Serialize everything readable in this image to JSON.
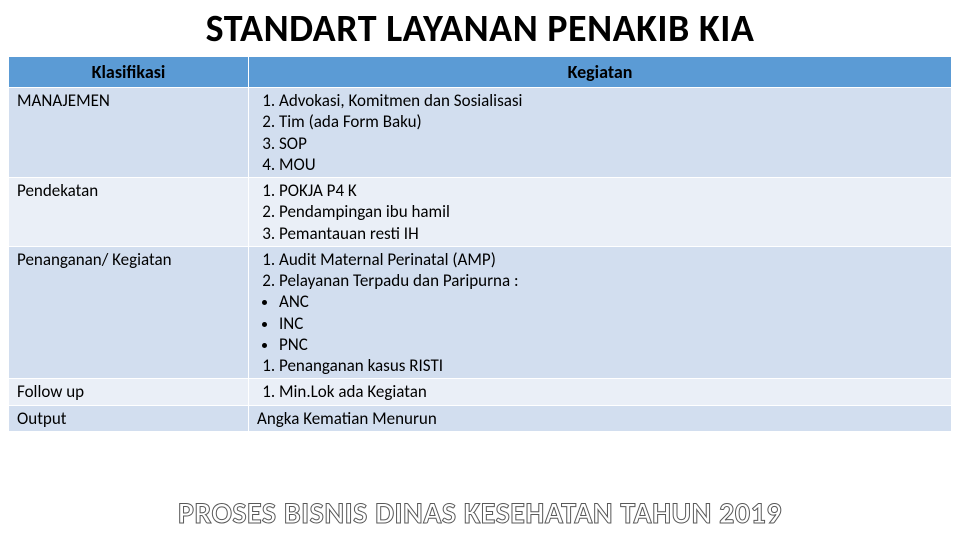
{
  "title": "STANDART LAYANAN PENAKIB KIA",
  "columns": {
    "col1": "Klasifikasi",
    "col2": "Kegiatan"
  },
  "rows": {
    "r0": {
      "klas": "MANAJEMEN",
      "items": {
        "i0": "Advokasi, Komitmen dan Sosialisasi",
        "i1": "Tim (ada Form Baku)",
        "i2": "SOP",
        "i3": "MOU"
      }
    },
    "r1": {
      "klas": "Pendekatan",
      "items": {
        "i0": "POKJA P4 K",
        "i1": "Pendampingan ibu hamil",
        "i2": "Pemantauan resti IH"
      }
    },
    "r2": {
      "klas": "Penanganan/ Kegiatan",
      "ol1": {
        "i0": "Audit Maternal Perinatal (AMP)",
        "i1": "Pelayanan Terpadu dan Paripurna :"
      },
      "ul": {
        "i0": "ANC",
        "i1": "INC",
        "i2": "PNC"
      },
      "ol2": {
        "i0": "Penanganan kasus RISTI"
      }
    },
    "r3": {
      "klas": "Follow up",
      "items": {
        "i0": "Min.Lok ada Kegiatan"
      }
    },
    "r4": {
      "klas": "Output",
      "text": "Angka Kematian Menurun"
    }
  },
  "footer": "PROSES BISNIS DINAS KESEHATAN TAHUN 2019",
  "colors": {
    "header_bg": "#5b9bd5",
    "row_even": "#eaeff7",
    "row_odd": "#d2deef",
    "footer_stroke": "#595959"
  }
}
